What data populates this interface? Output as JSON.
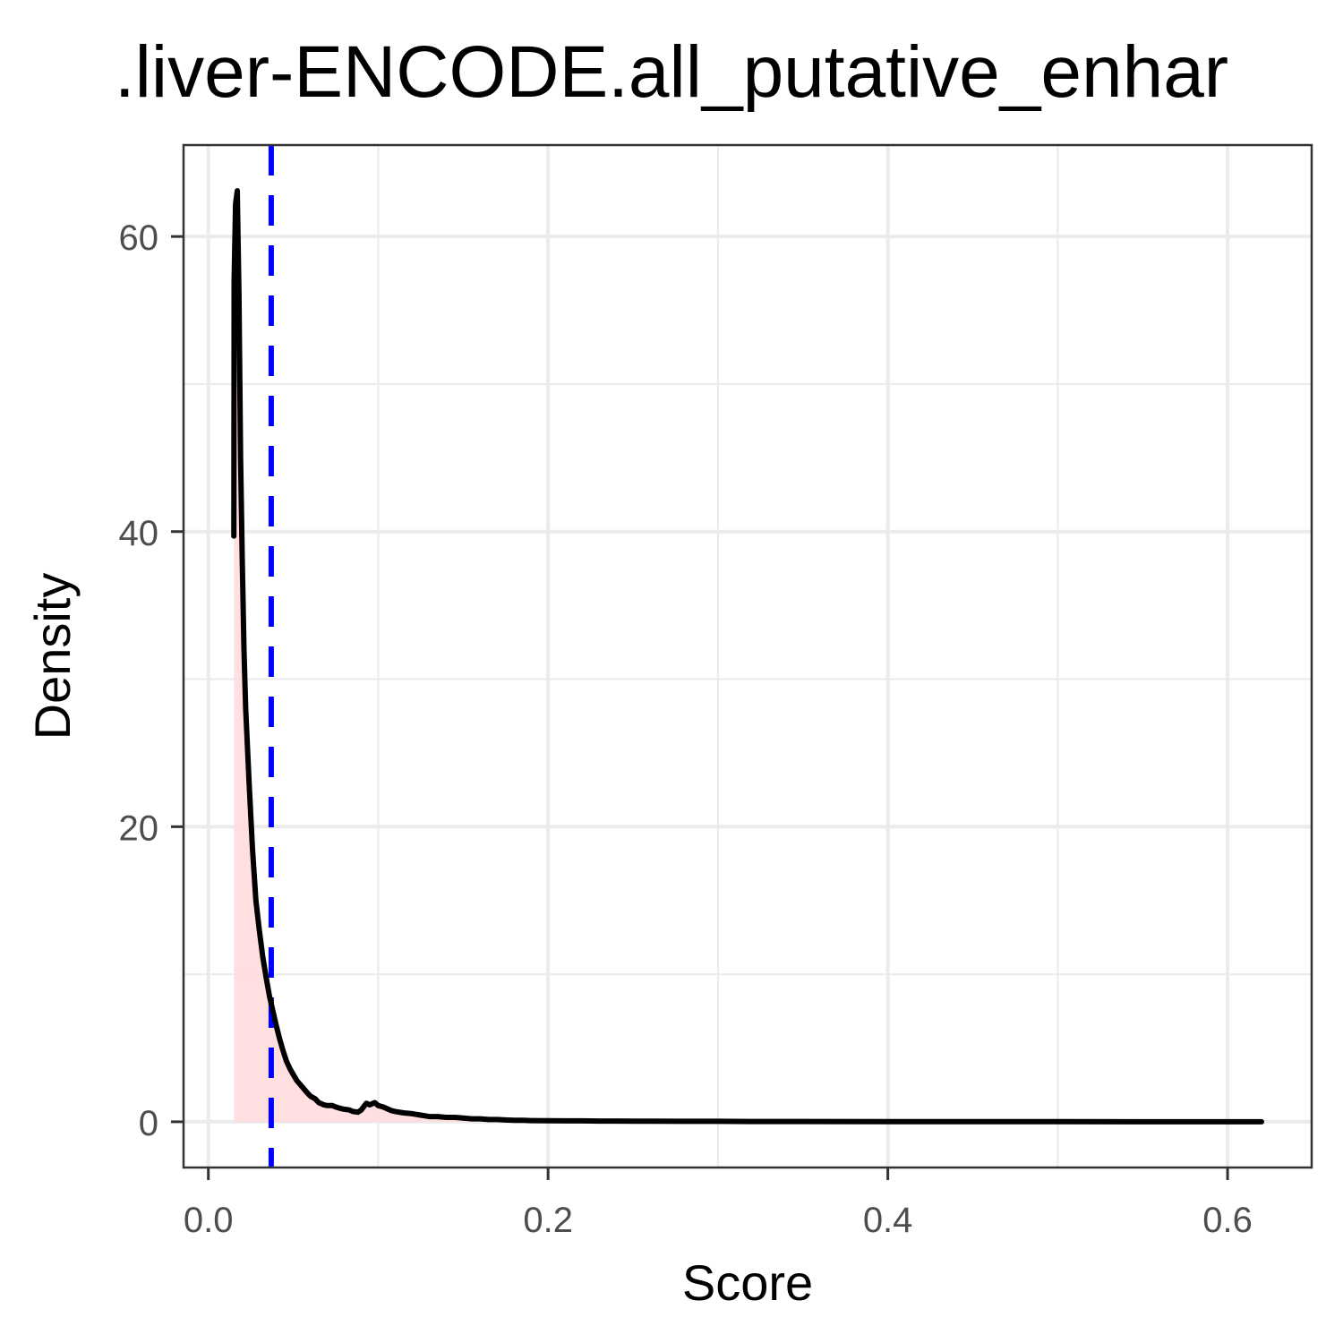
{
  "chart_data": {
    "type": "area",
    "title": ".liver-ENCODE.all_putative_enhar",
    "xlabel": "Score",
    "ylabel": "Density",
    "xlim": [
      -0.0146,
      0.6495
    ],
    "ylim": [
      -3.1,
      66.2
    ],
    "x_ticks": [
      0.0,
      0.2,
      0.4,
      0.6
    ],
    "x_tick_labels": [
      "0.0",
      "0.2",
      "0.4",
      "0.6"
    ],
    "y_ticks": [
      0,
      20,
      40,
      60
    ],
    "y_tick_labels": [
      "0",
      "20",
      "40",
      "60"
    ],
    "x_minor_ticks": [
      0.1,
      0.3,
      0.5
    ],
    "y_minor_ticks": [
      10,
      30,
      50
    ],
    "grid": true,
    "fill_color": "#ffdcdc",
    "line_color": "#000000",
    "vline": {
      "x": 0.037,
      "color": "#0000ff",
      "style": "dashed"
    },
    "series": [
      {
        "x": [
          0.015,
          0.0152,
          0.016,
          0.017,
          0.018,
          0.019,
          0.02,
          0.021,
          0.022,
          0.024,
          0.026,
          0.028,
          0.03,
          0.032,
          0.034,
          0.036,
          0.038,
          0.04,
          0.042,
          0.044,
          0.046,
          0.048,
          0.05,
          0.052,
          0.055,
          0.058,
          0.06,
          0.063,
          0.065,
          0.068,
          0.07,
          0.073,
          0.075,
          0.078,
          0.08,
          0.083,
          0.085,
          0.088,
          0.09,
          0.093,
          0.095,
          0.098,
          0.1,
          0.103,
          0.105,
          0.108,
          0.11,
          0.115,
          0.12,
          0.125,
          0.13,
          0.135,
          0.14,
          0.145,
          0.15,
          0.155,
          0.16,
          0.165,
          0.17,
          0.175,
          0.18,
          0.185,
          0.19,
          0.2,
          0.21,
          0.22,
          0.23,
          0.24,
          0.25,
          0.26,
          0.28,
          0.3,
          0.32,
          0.35,
          0.4,
          0.45,
          0.5,
          0.55,
          0.6,
          0.62
        ],
        "y": [
          39.7,
          57.0,
          62.2,
          63.1,
          56.0,
          45.0,
          38.0,
          32.0,
          28.0,
          23.0,
          18.5,
          15.0,
          13.0,
          11.2,
          9.8,
          8.5,
          7.5,
          6.5,
          5.6,
          4.8,
          4.1,
          3.6,
          3.2,
          2.8,
          2.4,
          2.0,
          1.75,
          1.55,
          1.3,
          1.15,
          1.1,
          1.1,
          1.0,
          0.9,
          0.85,
          0.8,
          0.7,
          0.65,
          0.8,
          1.25,
          1.15,
          1.3,
          1.1,
          1.0,
          0.9,
          0.75,
          0.7,
          0.6,
          0.55,
          0.45,
          0.35,
          0.35,
          0.3,
          0.3,
          0.25,
          0.2,
          0.2,
          0.15,
          0.15,
          0.12,
          0.1,
          0.1,
          0.08,
          0.07,
          0.06,
          0.06,
          0.05,
          0.05,
          0.04,
          0.04,
          0.03,
          0.03,
          0.02,
          0.02,
          0.01,
          0.01,
          0.01,
          0.0,
          0.0,
          0.0
        ]
      }
    ]
  }
}
